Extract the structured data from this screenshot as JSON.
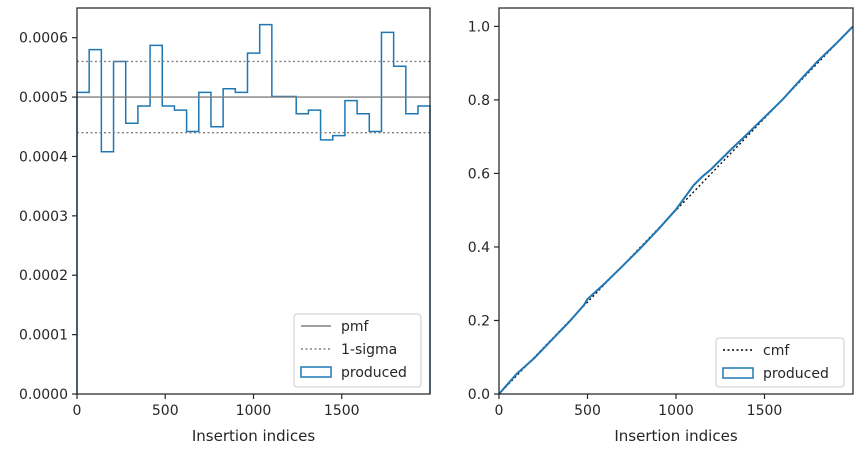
{
  "chart_data": [
    {
      "type": "step-histogram",
      "xlabel": "Insertion indices",
      "ylabel": "",
      "xlim": [
        0,
        2000
      ],
      "ylim": [
        0,
        0.00065
      ],
      "xticks": [
        0,
        500,
        1000,
        1500
      ],
      "yticks": [
        0.0,
        0.0001,
        0.0002,
        0.0003,
        0.0004,
        0.0005,
        0.0006
      ],
      "ytick_labels": [
        "0.0000",
        "0.0001",
        "0.0002",
        "0.0003",
        "0.0004",
        "0.0005",
        "0.0006"
      ],
      "grid": false,
      "legend_position": "lower-right",
      "bin_edges": [
        0,
        69,
        138,
        207,
        276,
        345,
        414,
        483,
        552,
        621,
        690,
        759,
        828,
        897,
        966,
        1035,
        1104,
        1173,
        1242,
        1311,
        1380,
        1449,
        1518,
        1587,
        1656,
        1725,
        1794,
        1863,
        1932,
        2000
      ],
      "series": [
        {
          "name": "produced",
          "kind": "step",
          "color": "#1f77b4",
          "values": [
            0.000508,
            0.00058,
            0.000408,
            0.00056,
            0.000456,
            0.000485,
            0.000587,
            0.000485,
            0.000478,
            0.000442,
            0.000508,
            0.00045,
            0.000514,
            0.000508,
            0.000574,
            0.000622,
            0.000501,
            0.000501,
            0.000472,
            0.000478,
            0.000428,
            0.000435,
            0.000494,
            0.000472,
            0.000442,
            0.000609,
            0.000552,
            0.000472,
            0.000485
          ]
        },
        {
          "name": "pmf",
          "kind": "hline",
          "color": "#808080",
          "style": "solid",
          "value": 0.0005
        },
        {
          "name": "1-sigma",
          "kind": "hlines",
          "color": "#808080",
          "style": "dotted",
          "values": [
            0.00044,
            0.00056
          ]
        }
      ]
    },
    {
      "type": "line",
      "xlabel": "Insertion indices",
      "ylabel": "",
      "xlim": [
        0,
        2000
      ],
      "ylim": [
        0,
        1.05
      ],
      "xticks": [
        0,
        500,
        1000,
        1500
      ],
      "yticks": [
        0.0,
        0.2,
        0.4,
        0.6,
        0.8,
        1.0
      ],
      "ytick_labels": [
        "0.0",
        "0.2",
        "0.4",
        "0.6",
        "0.8",
        "1.0"
      ],
      "grid": false,
      "legend_position": "lower-right",
      "series": [
        {
          "name": "cmf",
          "kind": "line",
          "color": "#000000",
          "style": "dotted",
          "x": [
            0,
            2000
          ],
          "y": [
            0,
            1.0
          ]
        },
        {
          "name": "produced",
          "kind": "line",
          "color": "#1f77b4",
          "x": [
            0,
            100,
            200,
            300,
            400,
            480,
            500,
            600,
            700,
            800,
            900,
            1000,
            1100,
            1150,
            1200,
            1300,
            1400,
            1500,
            1600,
            1700,
            1800,
            1900,
            2000
          ],
          "y": [
            0,
            0.055,
            0.098,
            0.148,
            0.198,
            0.242,
            0.258,
            0.302,
            0.349,
            0.397,
            0.448,
            0.502,
            0.568,
            0.592,
            0.612,
            0.66,
            0.706,
            0.753,
            0.8,
            0.853,
            0.905,
            0.951,
            1.0
          ]
        }
      ]
    }
  ]
}
